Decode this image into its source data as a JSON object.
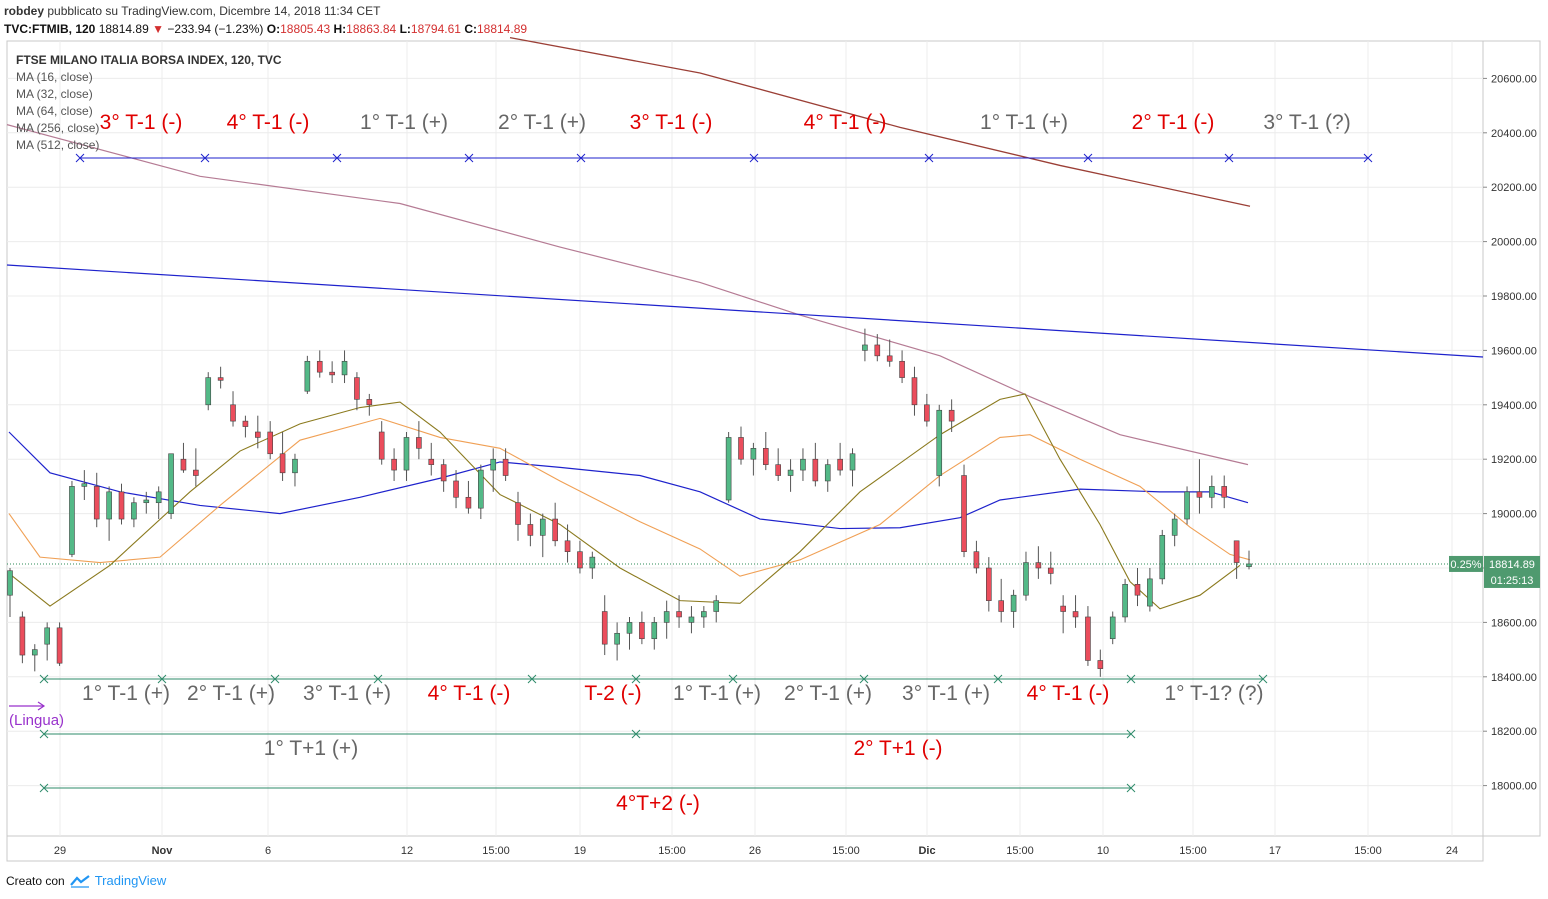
{
  "header": {
    "user": "robdey",
    "published": "pubblicato su TradingView.com, Dicembre 14, 2018 11:34 CET",
    "symbol": "TVC:FTMIB, 120",
    "last": "18814.89",
    "change": "−233.94 (−1.23%)",
    "o_label": "O:",
    "o": "18805.43",
    "h_label": "H:",
    "h": "18863.84",
    "l_label": "L:",
    "l": "18794.61",
    "c_label": "C:",
    "c": "18814.89"
  },
  "legend": {
    "title": "FTSE MILANO ITALIA BORSA INDEX, 120, TVC",
    "items": [
      "MA (16, close)",
      "MA (32, close)",
      "MA (64, close)",
      "MA (256, close)",
      "MA (512, close)"
    ]
  },
  "footer": {
    "created_with": "Creato con",
    "brand": "TradingView"
  },
  "chart_data": {
    "type": "candlestick",
    "title": "FTSE MILANO ITALIA BORSA INDEX, 120, TVC",
    "ylim": [
      17800,
      20750
    ],
    "y_ticks": [
      "20600.00",
      "20400.00",
      "20200.00",
      "20000.00",
      "19800.00",
      "19600.00",
      "19400.00",
      "19200.00",
      "19000.00",
      "18800.00",
      "18600.00",
      "18400.00",
      "18200.00",
      "18000.00"
    ],
    "x_ticks": [
      "29",
      "Nov",
      "6",
      "12",
      "15:00",
      "19",
      "15:00",
      "26",
      "15:00",
      "Dic",
      "15:00",
      "10",
      "15:00",
      "17",
      "15:00",
      "24"
    ],
    "price_label": "18814.89",
    "change_pct_label": "0.25%",
    "countdown_label": "01:25:13",
    "colors": {
      "up": "#53b987",
      "down": "#eb4d5c",
      "ma16": "#8b7a1e",
      "ma32": "#f0a055",
      "ma64": "#1e22cc",
      "ma256": "#b57b94",
      "ma512": "#9b3f36",
      "trendline": "#1e22cc",
      "cycle_top": "#1e22cc",
      "cycle_bottom": "#2e8b6a",
      "label_pos": "#666666",
      "label_neg": "#e00000",
      "lingua": "#9932cc"
    },
    "annotations_top": [
      {
        "text": "3° T-1 (-)",
        "sign": "neg"
      },
      {
        "text": "4° T-1 (-)",
        "sign": "neg"
      },
      {
        "text": "1° T-1 (+)",
        "sign": "pos"
      },
      {
        "text": "2° T-1 (+)",
        "sign": "pos"
      },
      {
        "text": "3° T-1 (-)",
        "sign": "neg"
      },
      {
        "text": "4° T-1 (-)",
        "sign": "neg"
      },
      {
        "text": "1° T-1 (+)",
        "sign": "pos"
      },
      {
        "text": "2° T-1 (-)",
        "sign": "neg"
      },
      {
        "text": "3° T-1 (?)",
        "sign": "pos"
      }
    ],
    "annotations_bottom": [
      {
        "text": "1° T-1 (+)",
        "sign": "pos"
      },
      {
        "text": "2° T-1 (+)",
        "sign": "pos"
      },
      {
        "text": "3° T-1 (+)",
        "sign": "pos"
      },
      {
        "text": "4° T-1 (-)",
        "sign": "neg"
      },
      {
        "text": "T-2 (-)",
        "sign": "neg"
      },
      {
        "text": "1° T-1 (+)",
        "sign": "pos"
      },
      {
        "text": "2° T-1 (+)",
        "sign": "pos"
      },
      {
        "text": "3° T-1 (+)",
        "sign": "pos"
      },
      {
        "text": "4° T-1 (-)",
        "sign": "neg"
      },
      {
        "text": "1° T-1? (?)",
        "sign": "pos"
      }
    ],
    "annotations_t1": [
      {
        "text": "1° T+1 (+)",
        "sign": "pos"
      },
      {
        "text": "2° T+1 (-)",
        "sign": "neg"
      }
    ],
    "annotation_t2": {
      "text": "4°T+2 (-)",
      "sign": "neg"
    },
    "lingua_label": "(Lingua)",
    "candles": [
      [
        18700,
        18800,
        18620,
        18790
      ],
      [
        18620,
        18640,
        18450,
        18480
      ],
      [
        18480,
        18520,
        18420,
        18500
      ],
      [
        18520,
        18600,
        18460,
        18580
      ],
      [
        18580,
        18600,
        18440,
        18450
      ],
      [
        18850,
        19120,
        18840,
        19100
      ],
      [
        19100,
        19160,
        19050,
        19110
      ],
      [
        19100,
        19150,
        18950,
        18980
      ],
      [
        18980,
        19100,
        18900,
        19080
      ],
      [
        19080,
        19110,
        18960,
        18980
      ],
      [
        18980,
        19060,
        18950,
        19040
      ],
      [
        19040,
        19080,
        19000,
        19050
      ],
      [
        19040,
        19100,
        18980,
        19080
      ],
      [
        19000,
        19200,
        18980,
        19220
      ],
      [
        19200,
        19260,
        19150,
        19160
      ],
      [
        19160,
        19240,
        19100,
        19140
      ],
      [
        19400,
        19520,
        19380,
        19500
      ],
      [
        19500,
        19540,
        19460,
        19490
      ],
      [
        19400,
        19450,
        19320,
        19340
      ],
      [
        19340,
        19360,
        19280,
        19320
      ],
      [
        19300,
        19360,
        19240,
        19280
      ],
      [
        19300,
        19340,
        19200,
        19220
      ],
      [
        19220,
        19300,
        19120,
        19150
      ],
      [
        19150,
        19220,
        19100,
        19200
      ],
      [
        19450,
        19580,
        19440,
        19560
      ],
      [
        19560,
        19600,
        19500,
        19520
      ],
      [
        19520,
        19560,
        19480,
        19510
      ],
      [
        19510,
        19600,
        19480,
        19560
      ],
      [
        19500,
        19520,
        19380,
        19420
      ],
      [
        19420,
        19440,
        19360,
        19400
      ],
      [
        19300,
        19340,
        19180,
        19200
      ],
      [
        19200,
        19240,
        19120,
        19160
      ],
      [
        19160,
        19300,
        19120,
        19280
      ],
      [
        19280,
        19340,
        19200,
        19240
      ],
      [
        19200,
        19260,
        19140,
        19180
      ],
      [
        19180,
        19200,
        19080,
        19120
      ],
      [
        19120,
        19160,
        19020,
        19060
      ],
      [
        19060,
        19120,
        19000,
        19020
      ],
      [
        19020,
        19180,
        18980,
        19160
      ],
      [
        19160,
        19240,
        19080,
        19200
      ],
      [
        19200,
        19240,
        19120,
        19140
      ],
      [
        19040,
        19080,
        18900,
        18960
      ],
      [
        18960,
        19000,
        18880,
        18920
      ],
      [
        18920,
        19000,
        18840,
        18980
      ],
      [
        18980,
        19040,
        18880,
        18900
      ],
      [
        18900,
        18960,
        18820,
        18860
      ],
      [
        18860,
        18900,
        18780,
        18800
      ],
      [
        18800,
        18860,
        18760,
        18840
      ],
      [
        18640,
        18700,
        18480,
        18520
      ],
      [
        18520,
        18600,
        18460,
        18560
      ],
      [
        18560,
        18620,
        18500,
        18600
      ],
      [
        18600,
        18640,
        18520,
        18540
      ],
      [
        18540,
        18620,
        18500,
        18600
      ],
      [
        18600,
        18680,
        18540,
        18640
      ],
      [
        18640,
        18700,
        18580,
        18620
      ],
      [
        18600,
        18660,
        18560,
        18620
      ],
      [
        18620,
        18660,
        18580,
        18640
      ],
      [
        18640,
        18700,
        18600,
        18680
      ],
      [
        19050,
        19300,
        19040,
        19280
      ],
      [
        19280,
        19320,
        19180,
        19200
      ],
      [
        19200,
        19260,
        19140,
        19240
      ],
      [
        19240,
        19300,
        19160,
        19180
      ],
      [
        19180,
        19240,
        19120,
        19140
      ],
      [
        19140,
        19200,
        19080,
        19160
      ],
      [
        19160,
        19240,
        19120,
        19200
      ],
      [
        19200,
        19260,
        19100,
        19120
      ],
      [
        19120,
        19200,
        19080,
        19180
      ],
      [
        19200,
        19260,
        19140,
        19160
      ],
      [
        19160,
        19240,
        19100,
        19220
      ],
      [
        19600,
        19680,
        19560,
        19620
      ],
      [
        19620,
        19660,
        19560,
        19580
      ],
      [
        19580,
        19640,
        19540,
        19560
      ],
      [
        19560,
        19600,
        19480,
        19500
      ],
      [
        19500,
        19540,
        19360,
        19400
      ],
      [
        19400,
        19440,
        19320,
        19340
      ],
      [
        19140,
        19400,
        19100,
        19380
      ],
      [
        19380,
        19420,
        19300,
        19340
      ],
      [
        19140,
        19180,
        18840,
        18860
      ],
      [
        18860,
        18900,
        18780,
        18800
      ],
      [
        18800,
        18840,
        18640,
        18680
      ],
      [
        18680,
        18760,
        18600,
        18640
      ],
      [
        18640,
        18720,
        18580,
        18700
      ],
      [
        18700,
        18860,
        18680,
        18820
      ],
      [
        18820,
        18880,
        18760,
        18800
      ],
      [
        18800,
        18860,
        18740,
        18780
      ],
      [
        18660,
        18700,
        18560,
        18640
      ],
      [
        18640,
        18700,
        18580,
        18620
      ],
      [
        18620,
        18660,
        18440,
        18460
      ],
      [
        18460,
        18500,
        18400,
        18430
      ],
      [
        18540,
        18640,
        18520,
        18620
      ],
      [
        18620,
        18760,
        18600,
        18740
      ],
      [
        18740,
        18800,
        18660,
        18700
      ],
      [
        18660,
        18800,
        18640,
        18760
      ],
      [
        18760,
        18940,
        18740,
        18920
      ],
      [
        18920,
        19000,
        18880,
        18980
      ],
      [
        18980,
        19100,
        18960,
        19080
      ],
      [
        19080,
        19200,
        19000,
        19060
      ],
      [
        19060,
        19140,
        19020,
        19100
      ],
      [
        19100,
        19140,
        19020,
        19060
      ],
      [
        18900,
        18880,
        18760,
        18820
      ],
      [
        18805,
        18864,
        18795,
        18815
      ]
    ]
  }
}
